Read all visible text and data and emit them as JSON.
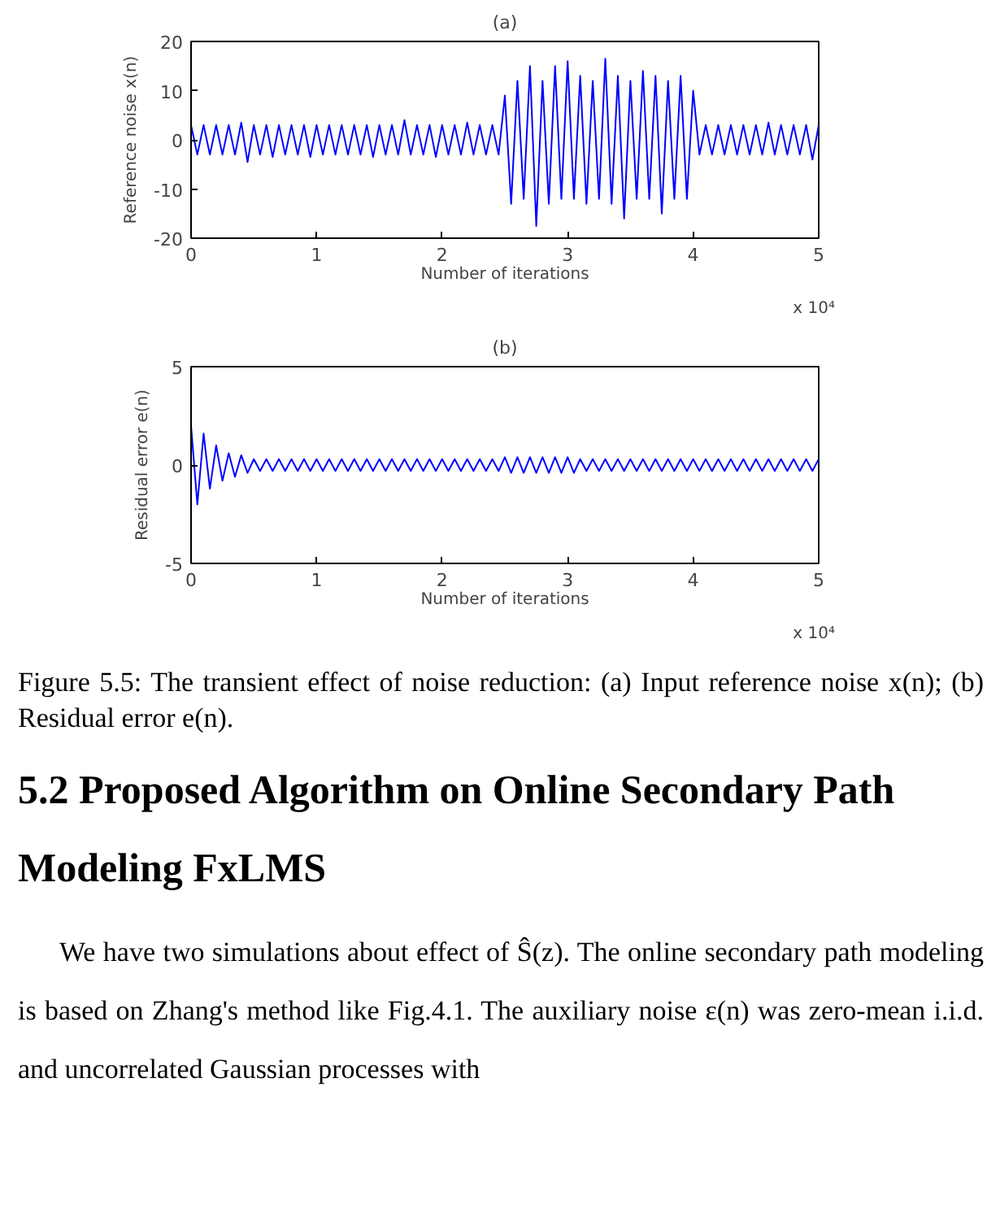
{
  "chart_data": [
    {
      "type": "line",
      "title": "(a)",
      "xlabel": "Number of iterations",
      "ylabel": "Reference noise x(n)",
      "xlim": [
        0,
        5
      ],
      "ylim": [
        -20,
        20
      ],
      "xticks": [
        0,
        1,
        2,
        3,
        4,
        5
      ],
      "yticks": [
        -20,
        -10,
        0,
        10,
        20
      ],
      "grid": false,
      "marker": "none",
      "line_style": "solid",
      "annotations": [
        "x 10⁴"
      ],
      "x": [
        0,
        0.05,
        0.1,
        0.15,
        0.2,
        0.25,
        0.3,
        0.35,
        0.4,
        0.45,
        0.5,
        0.55,
        0.6,
        0.65,
        0.7,
        0.75,
        0.8,
        0.85,
        0.9,
        0.95,
        1,
        1.05,
        1.1,
        1.15,
        1.2,
        1.25,
        1.3,
        1.35,
        1.4,
        1.45,
        1.5,
        1.55,
        1.6,
        1.65,
        1.7,
        1.75,
        1.8,
        1.85,
        1.9,
        1.95,
        2,
        2.05,
        2.1,
        2.15,
        2.2,
        2.25,
        2.3,
        2.35,
        2.4,
        2.45,
        2.5,
        2.55,
        2.6,
        2.65,
        2.7,
        2.75,
        2.8,
        2.85,
        2.9,
        2.95,
        3,
        3.05,
        3.1,
        3.15,
        3.2,
        3.25,
        3.3,
        3.35,
        3.4,
        3.45,
        3.5,
        3.55,
        3.6,
        3.65,
        3.7,
        3.75,
        3.8,
        3.85,
        3.9,
        3.95,
        4,
        4.05,
        4.1,
        4.15,
        4.2,
        4.25,
        4.3,
        4.35,
        4.4,
        4.45,
        4.5,
        4.55,
        4.6,
        4.65,
        4.7,
        4.75,
        4.8,
        4.85,
        4.9,
        4.95,
        5
      ],
      "series": [
        {
          "color": "#0000ff",
          "values": [
            3,
            -3,
            3,
            -3,
            3,
            -3,
            3,
            -3,
            3.5,
            -4.5,
            3,
            -3,
            3,
            -3.5,
            3,
            -3,
            3,
            -3,
            3,
            -3.5,
            3,
            -3,
            3,
            -3,
            3,
            -3,
            3,
            -3,
            3,
            -3.5,
            3,
            -3,
            3,
            -3,
            4,
            -3,
            3,
            -3,
            3,
            -3.5,
            3,
            -3,
            3,
            -3,
            3.5,
            -3,
            3,
            -3,
            3,
            -3,
            9,
            -13,
            12,
            -12,
            15,
            -17.5,
            12,
            -13,
            15,
            -12,
            16,
            -12,
            13,
            -13,
            12,
            -12,
            16.5,
            -13,
            13,
            -16,
            12,
            -12,
            14,
            -12,
            13,
            -15,
            12,
            -12,
            13,
            -12,
            10,
            -3,
            3,
            -3,
            3,
            -3,
            3,
            -3,
            3,
            -3,
            3,
            -3,
            3.5,
            -3,
            3,
            -3,
            3,
            -3,
            3,
            -4,
            3
          ]
        }
      ]
    },
    {
      "type": "line",
      "title": "(b)",
      "xlabel": "Number of iterations",
      "ylabel": "Residual error e(n)",
      "xlim": [
        0,
        5
      ],
      "ylim": [
        -5,
        5
      ],
      "xticks": [
        0,
        1,
        2,
        3,
        4,
        5
      ],
      "yticks": [
        -5,
        0,
        5
      ],
      "grid": false,
      "marker": "none",
      "line_style": "solid",
      "annotations": [
        "x 10⁴",
        "Figure 5.5: The transient effect of noise reduction: (a) Input reference noise x(n); (b) Residual error e(n).",
        "5.2 Proposed Algorithm on Online Secondary Path Modeling FxLMS",
        "We have two simulations about effect of Ŝ(z). The online secondary path modeling is based on Zhang's method like Fig.4.1. The auxiliary noise ε(n) was zero-mean i.i.d. and uncorrelated Gaussian processes with"
      ],
      "x": [
        0,
        0.05,
        0.1,
        0.15,
        0.2,
        0.25,
        0.3,
        0.35,
        0.4,
        0.45,
        0.5,
        0.55,
        0.6,
        0.65,
        0.7,
        0.75,
        0.8,
        0.85,
        0.9,
        0.95,
        1,
        1.05,
        1.1,
        1.15,
        1.2,
        1.25,
        1.3,
        1.35,
        1.4,
        1.45,
        1.5,
        1.55,
        1.6,
        1.65,
        1.7,
        1.75,
        1.8,
        1.85,
        1.9,
        1.95,
        2,
        2.05,
        2.1,
        2.15,
        2.2,
        2.25,
        2.3,
        2.35,
        2.4,
        2.45,
        2.5,
        2.55,
        2.6,
        2.65,
        2.7,
        2.75,
        2.8,
        2.85,
        2.9,
        2.95,
        3,
        3.05,
        3.1,
        3.15,
        3.2,
        3.25,
        3.3,
        3.35,
        3.4,
        3.45,
        3.5,
        3.55,
        3.6,
        3.65,
        3.7,
        3.75,
        3.8,
        3.85,
        3.9,
        3.95,
        4,
        4.05,
        4.1,
        4.15,
        4.2,
        4.25,
        4.3,
        4.35,
        4.4,
        4.45,
        4.5,
        4.55,
        4.6,
        4.65,
        4.7,
        4.75,
        4.8,
        4.85,
        4.9,
        4.95,
        5
      ],
      "series": [
        {
          "color": "#0000ff",
          "values": [
            2,
            -2,
            1.6,
            -1.2,
            1,
            -0.8,
            0.6,
            -0.6,
            0.5,
            -0.4,
            0.3,
            -0.3,
            0.3,
            -0.3,
            0.3,
            -0.3,
            0.3,
            -0.3,
            0.3,
            -0.3,
            0.3,
            -0.3,
            0.3,
            -0.3,
            0.3,
            -0.3,
            0.3,
            -0.3,
            0.3,
            -0.3,
            0.3,
            -0.3,
            0.3,
            -0.3,
            0.3,
            -0.3,
            0.3,
            -0.3,
            0.3,
            -0.3,
            0.3,
            -0.3,
            0.3,
            -0.3,
            0.3,
            -0.3,
            0.3,
            -0.3,
            0.3,
            -0.3,
            0.4,
            -0.4,
            0.4,
            -0.4,
            0.4,
            -0.4,
            0.4,
            -0.4,
            0.4,
            -0.4,
            0.4,
            -0.4,
            0.3,
            -0.3,
            0.3,
            -0.3,
            0.3,
            -0.3,
            0.3,
            -0.3,
            0.3,
            -0.3,
            0.3,
            -0.3,
            0.3,
            -0.3,
            0.3,
            -0.3,
            0.3,
            -0.3,
            0.3,
            -0.3,
            0.3,
            -0.3,
            0.3,
            -0.3,
            0.3,
            -0.3,
            0.3,
            -0.3,
            0.3,
            -0.3,
            0.3,
            -0.3,
            0.3,
            -0.3,
            0.3,
            -0.3,
            0.3,
            -0.3,
            0.3
          ]
        }
      ]
    }
  ]
}
